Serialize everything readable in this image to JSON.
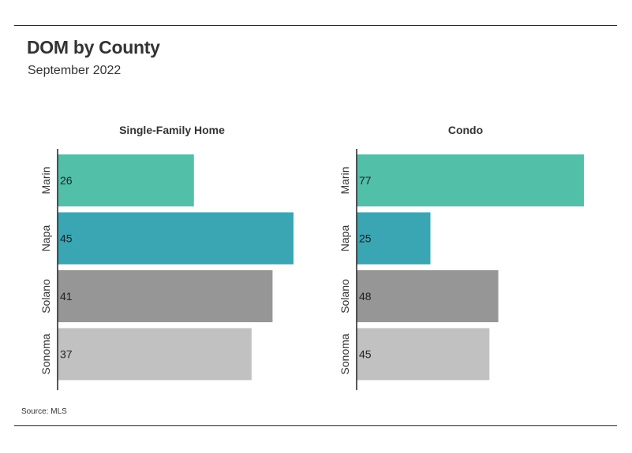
{
  "title": "DOM by County",
  "subtitle": "September 2022",
  "source": "Source: MLS",
  "chart_data": [
    {
      "type": "bar",
      "orientation": "horizontal",
      "title": "Single-Family Home",
      "categories": [
        "Marin",
        "Napa",
        "Solano",
        "Sonoma"
      ],
      "values": [
        26,
        45,
        41,
        37
      ],
      "xlim": [
        0,
        45
      ],
      "colors": [
        "#52bfa9",
        "#3aa6b4",
        "#969696",
        "#c1c1c1"
      ],
      "grid": false
    },
    {
      "type": "bar",
      "orientation": "horizontal",
      "title": "Condo",
      "categories": [
        "Marin",
        "Napa",
        "Solano",
        "Sonoma"
      ],
      "values": [
        77,
        25,
        48,
        45
      ],
      "xlim": [
        0,
        77
      ],
      "colors": [
        "#52bfa9",
        "#3aa6b4",
        "#969696",
        "#c1c1c1"
      ],
      "grid": false
    }
  ]
}
